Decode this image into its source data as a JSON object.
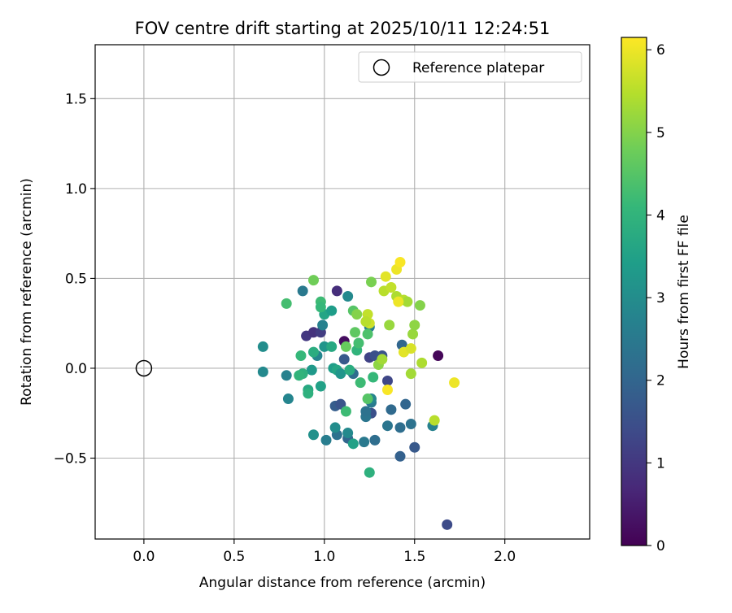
{
  "chart_data": {
    "type": "scatter",
    "title": "FOV centre drift starting at 2025/10/11 12:24:51",
    "xlabel": "Angular distance from reference (arcmin)",
    "ylabel": "Rotation from reference (arcmin)",
    "xlim": [
      -0.27,
      2.47
    ],
    "ylim": [
      -0.95,
      1.8
    ],
    "xticks": [
      0.0,
      0.5,
      1.0,
      1.5,
      2.0
    ],
    "xtick_labels": [
      "0.0",
      "0.5",
      "1.0",
      "1.5",
      "2.0"
    ],
    "yticks": [
      -0.5,
      0.0,
      0.5,
      1.0,
      1.5
    ],
    "ytick_labels": [
      "−0.5",
      "0.0",
      "0.5",
      "1.0",
      "1.5"
    ],
    "grid": true,
    "legend": {
      "position": "top-right",
      "entries": [
        "Reference platepar"
      ]
    },
    "reference_point": {
      "x": 0.0,
      "y": 0.0,
      "label": "Reference platepar",
      "marker": "open-circle"
    },
    "colorbar": {
      "label": "Hours from first FF file",
      "colormap": "viridis",
      "range": [
        0,
        6.15
      ],
      "ticks": [
        0,
        1,
        2,
        3,
        4,
        5,
        6
      ],
      "tick_labels": [
        "0",
        "1",
        "2",
        "3",
        "4",
        "5",
        "6"
      ]
    },
    "points": [
      {
        "x": 1.11,
        "y": 0.15,
        "h": 0.2
      },
      {
        "x": 1.63,
        "y": 0.07,
        "h": 0.1
      },
      {
        "x": 1.07,
        "y": 0.43,
        "h": 0.8
      },
      {
        "x": 0.9,
        "y": 0.18,
        "h": 1.0
      },
      {
        "x": 0.94,
        "y": 0.2,
        "h": 0.9
      },
      {
        "x": 0.98,
        "y": 0.2,
        "h": 1.1
      },
      {
        "x": 1.68,
        "y": -0.87,
        "h": 1.4
      },
      {
        "x": 1.25,
        "y": 0.06,
        "h": 1.2
      },
      {
        "x": 1.28,
        "y": 0.07,
        "h": 1.5
      },
      {
        "x": 1.32,
        "y": 0.07,
        "h": 1.6
      },
      {
        "x": 1.35,
        "y": -0.07,
        "h": 1.3
      },
      {
        "x": 1.11,
        "y": 0.05,
        "h": 1.7
      },
      {
        "x": 1.06,
        "y": -0.21,
        "h": 1.8
      },
      {
        "x": 1.09,
        "y": -0.2,
        "h": 1.6
      },
      {
        "x": 1.26,
        "y": -0.25,
        "h": 1.5
      },
      {
        "x": 1.5,
        "y": -0.44,
        "h": 1.7
      },
      {
        "x": 1.42,
        "y": -0.49,
        "h": 1.9
      },
      {
        "x": 1.45,
        "y": -0.2,
        "h": 2.0
      },
      {
        "x": 1.37,
        "y": -0.23,
        "h": 2.1
      },
      {
        "x": 1.42,
        "y": -0.33,
        "h": 2.2
      },
      {
        "x": 1.48,
        "y": -0.31,
        "h": 2.3
      },
      {
        "x": 1.35,
        "y": -0.32,
        "h": 2.4
      },
      {
        "x": 1.28,
        "y": -0.4,
        "h": 2.2
      },
      {
        "x": 1.22,
        "y": -0.41,
        "h": 2.5
      },
      {
        "x": 1.13,
        "y": -0.39,
        "h": 2.0
      },
      {
        "x": 1.07,
        "y": -0.37,
        "h": 2.3
      },
      {
        "x": 1.01,
        "y": -0.4,
        "h": 2.6
      },
      {
        "x": 1.43,
        "y": 0.13,
        "h": 2.0
      },
      {
        "x": 1.6,
        "y": -0.32,
        "h": 2.7
      },
      {
        "x": 1.23,
        "y": -0.27,
        "h": 2.4
      },
      {
        "x": 1.23,
        "y": -0.24,
        "h": 2.3
      },
      {
        "x": 1.26,
        "y": -0.19,
        "h": 2.5
      },
      {
        "x": 1.26,
        "y": -0.17,
        "h": 2.8
      },
      {
        "x": 1.25,
        "y": 0.23,
        "h": 2.6
      },
      {
        "x": 0.99,
        "y": 0.24,
        "h": 2.7
      },
      {
        "x": 1.13,
        "y": 0.4,
        "h": 2.9
      },
      {
        "x": 0.88,
        "y": 0.43,
        "h": 2.5
      },
      {
        "x": 1.16,
        "y": -0.03,
        "h": 2.2
      },
      {
        "x": 1.13,
        "y": -0.36,
        "h": 2.9
      },
      {
        "x": 1.06,
        "y": -0.33,
        "h": 3.0
      },
      {
        "x": 0.94,
        "y": -0.37,
        "h": 3.1
      },
      {
        "x": 0.8,
        "y": -0.17,
        "h": 2.8
      },
      {
        "x": 0.79,
        "y": -0.04,
        "h": 2.7
      },
      {
        "x": 0.66,
        "y": -0.02,
        "h": 2.9
      },
      {
        "x": 0.66,
        "y": 0.12,
        "h": 3.0
      },
      {
        "x": 0.96,
        "y": 0.07,
        "h": 2.8
      },
      {
        "x": 1.0,
        "y": 0.12,
        "h": 3.2
      },
      {
        "x": 1.16,
        "y": -0.42,
        "h": 3.5
      },
      {
        "x": 1.25,
        "y": -0.58,
        "h": 3.9
      },
      {
        "x": 0.93,
        "y": -0.01,
        "h": 3.3
      },
      {
        "x": 1.05,
        "y": 0.0,
        "h": 3.4
      },
      {
        "x": 1.07,
        "y": -0.01,
        "h": 3.6
      },
      {
        "x": 1.09,
        "y": -0.03,
        "h": 3.2
      },
      {
        "x": 1.14,
        "y": -0.01,
        "h": 3.8
      },
      {
        "x": 0.91,
        "y": -0.12,
        "h": 3.7
      },
      {
        "x": 0.91,
        "y": -0.14,
        "h": 3.9
      },
      {
        "x": 0.98,
        "y": -0.1,
        "h": 3.5
      },
      {
        "x": 1.0,
        "y": 0.3,
        "h": 3.6
      },
      {
        "x": 1.04,
        "y": 0.32,
        "h": 3.4
      },
      {
        "x": 1.04,
        "y": 0.12,
        "h": 3.7
      },
      {
        "x": 0.88,
        "y": -0.03,
        "h": 3.9
      },
      {
        "x": 0.87,
        "y": 0.07,
        "h": 4.1
      },
      {
        "x": 0.94,
        "y": 0.09,
        "h": 3.8
      },
      {
        "x": 0.86,
        "y": -0.04,
        "h": 4.0
      },
      {
        "x": 0.79,
        "y": 0.36,
        "h": 4.3
      },
      {
        "x": 0.98,
        "y": 0.37,
        "h": 4.2
      },
      {
        "x": 0.98,
        "y": 0.34,
        "h": 4.1
      },
      {
        "x": 1.12,
        "y": -0.24,
        "h": 4.2
      },
      {
        "x": 1.18,
        "y": 0.1,
        "h": 4.0
      },
      {
        "x": 1.19,
        "y": 0.14,
        "h": 4.3
      },
      {
        "x": 1.2,
        "y": -0.08,
        "h": 4.2
      },
      {
        "x": 1.24,
        "y": 0.19,
        "h": 4.4
      },
      {
        "x": 1.24,
        "y": -0.17,
        "h": 4.5
      },
      {
        "x": 1.27,
        "y": -0.05,
        "h": 4.1
      },
      {
        "x": 1.17,
        "y": 0.2,
        "h": 4.6
      },
      {
        "x": 1.16,
        "y": 0.32,
        "h": 4.5
      },
      {
        "x": 1.12,
        "y": 0.12,
        "h": 4.7
      },
      {
        "x": 0.94,
        "y": 0.49,
        "h": 4.8
      },
      {
        "x": 1.26,
        "y": 0.48,
        "h": 4.9
      },
      {
        "x": 1.18,
        "y": 0.3,
        "h": 5.0
      },
      {
        "x": 1.3,
        "y": 0.02,
        "h": 5.1
      },
      {
        "x": 1.32,
        "y": 0.05,
        "h": 5.3
      },
      {
        "x": 1.36,
        "y": 0.24,
        "h": 5.2
      },
      {
        "x": 1.4,
        "y": 0.4,
        "h": 5.4
      },
      {
        "x": 1.33,
        "y": 0.43,
        "h": 5.5
      },
      {
        "x": 1.37,
        "y": 0.45,
        "h": 5.6
      },
      {
        "x": 1.44,
        "y": 0.38,
        "h": 5.5
      },
      {
        "x": 1.46,
        "y": 0.37,
        "h": 5.3
      },
      {
        "x": 1.49,
        "y": 0.19,
        "h": 5.2
      },
      {
        "x": 1.5,
        "y": 0.24,
        "h": 5.1
      },
      {
        "x": 1.53,
        "y": 0.35,
        "h": 5.0
      },
      {
        "x": 1.54,
        "y": 0.03,
        "h": 5.4
      },
      {
        "x": 1.48,
        "y": -0.03,
        "h": 5.3
      },
      {
        "x": 1.61,
        "y": -0.29,
        "h": 5.5
      },
      {
        "x": 1.24,
        "y": 0.3,
        "h": 5.6
      },
      {
        "x": 1.25,
        "y": 0.25,
        "h": 5.7
      },
      {
        "x": 1.23,
        "y": 0.26,
        "h": 5.5
      },
      {
        "x": 1.34,
        "y": 0.51,
        "h": 5.9
      },
      {
        "x": 1.4,
        "y": 0.55,
        "h": 6.0
      },
      {
        "x": 1.42,
        "y": 0.59,
        "h": 6.1
      },
      {
        "x": 1.41,
        "y": 0.37,
        "h": 6.0
      },
      {
        "x": 1.44,
        "y": 0.09,
        "h": 5.9
      },
      {
        "x": 1.48,
        "y": 0.11,
        "h": 5.8
      },
      {
        "x": 1.35,
        "y": -0.12,
        "h": 6.1
      },
      {
        "x": 1.72,
        "y": -0.08,
        "h": 6.0
      }
    ]
  }
}
